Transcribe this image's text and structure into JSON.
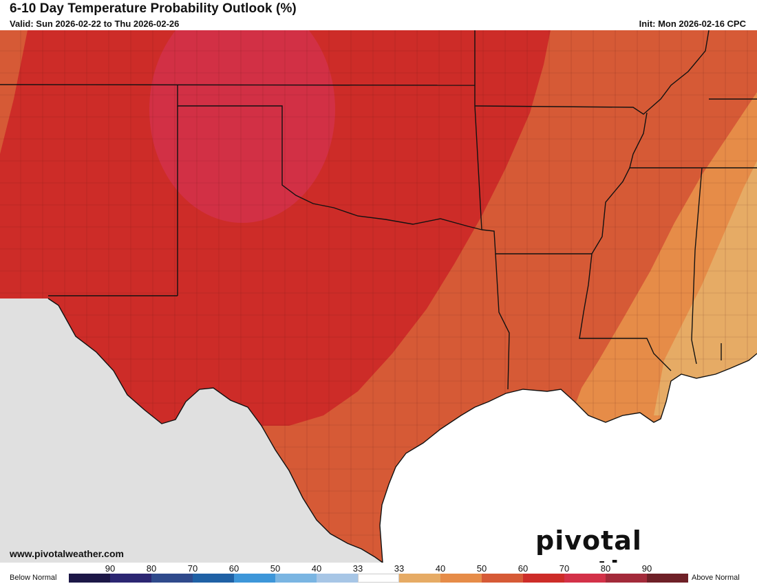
{
  "title": "6-10 Day Temperature Probability Outlook (%)",
  "valid": "Valid: Sun 2026-02-22 to Thu 2026-02-26",
  "init": "Init: Mon 2026-02-16 CPC",
  "website": "www.pivotalweather.com",
  "brand": "pivotal weather",
  "legend": {
    "below_label": "Below Normal",
    "above_label": "Above Normal",
    "ticks": [
      "90",
      "80",
      "70",
      "60",
      "50",
      "40",
      "33",
      "33",
      "40",
      "50",
      "60",
      "70",
      "80",
      "90"
    ],
    "colors": [
      "#1c1747",
      "#2b2672",
      "#2f4a8c",
      "#1f61a5",
      "#3d96d9",
      "#7ab5e2",
      "#a7c6e6",
      "#ffffff",
      "#e6ab65",
      "#e68c48",
      "#d65a36",
      "#cd2c28",
      "#d33148",
      "#a32a3a",
      "#6e2027"
    ]
  },
  "map": {
    "no_data_color": "#e0e0e0",
    "ocean_color": "#ffffff",
    "zones": [
      {
        "category": "Above 40",
        "color": "#e6ab65"
      },
      {
        "category": "Above 50",
        "color": "#e68c48"
      },
      {
        "category": "Above 60",
        "color": "#d65a36"
      },
      {
        "category": "Above 70",
        "color": "#cd2c28"
      },
      {
        "category": "Above 80",
        "color": "#d33148"
      }
    ]
  }
}
